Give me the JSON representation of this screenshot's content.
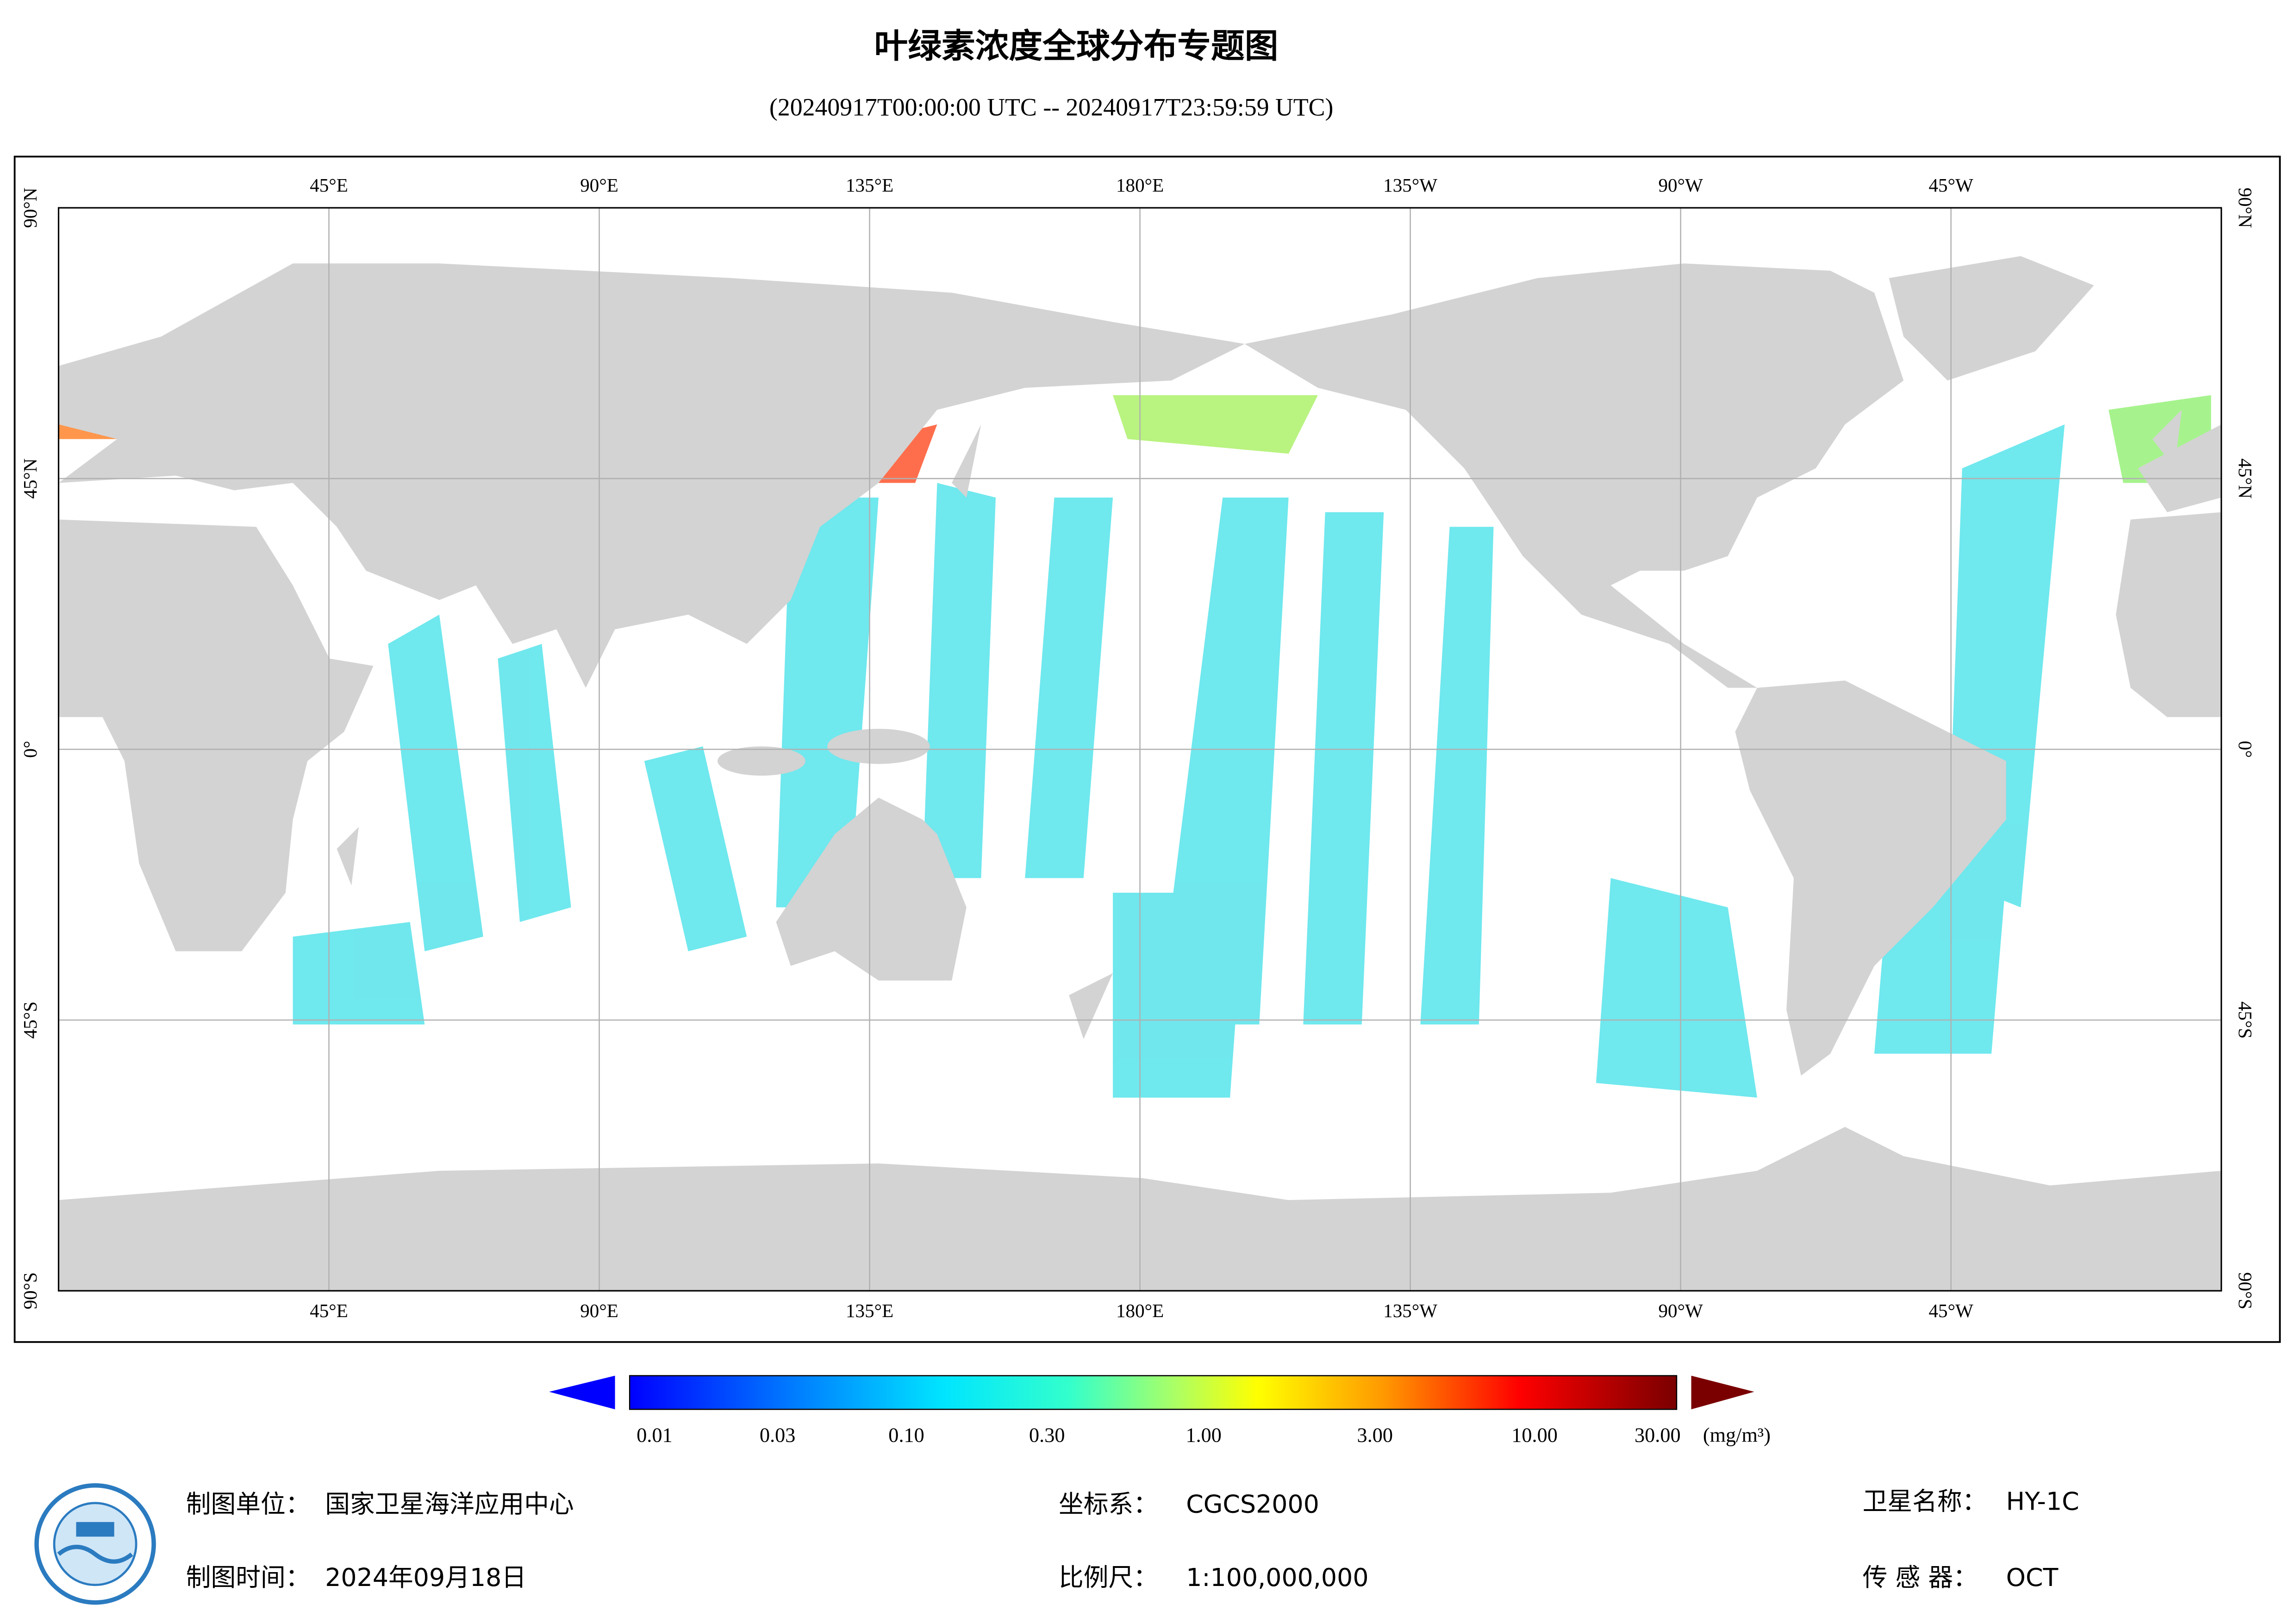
{
  "title": "叶绿素浓度全球分布专题图",
  "subtitle": "(20240917T00:00:00 UTC -- 20240917T23:59:59 UTC)",
  "map": {
    "lon_labels": [
      "45°E",
      "90°E",
      "135°E",
      "180°E",
      "135°W",
      "90°W",
      "45°W"
    ],
    "lat_labels": [
      "90°N",
      "45°N",
      "0°",
      "45°S",
      "90°S"
    ]
  },
  "colorbar": {
    "ticks": [
      "0.01",
      "0.03",
      "0.10",
      "0.30",
      "1.00",
      "3.00",
      "10.00",
      "30.00"
    ],
    "unit": "(mg/m³)"
  },
  "footer": {
    "unit_label": "制图单位：",
    "unit": "国家卫星海洋应用中心",
    "time_label": "制图时间：",
    "time": "2024年09月18日",
    "crs_label": "坐标系：",
    "crs": "CGCS2000",
    "scale_label": "比例尺：",
    "scale": "1:100,000,000",
    "satellite_label": "卫星名称：",
    "satellite": "HY-1C",
    "sensor_label": "传 感 器：",
    "sensor": "OCT"
  }
}
